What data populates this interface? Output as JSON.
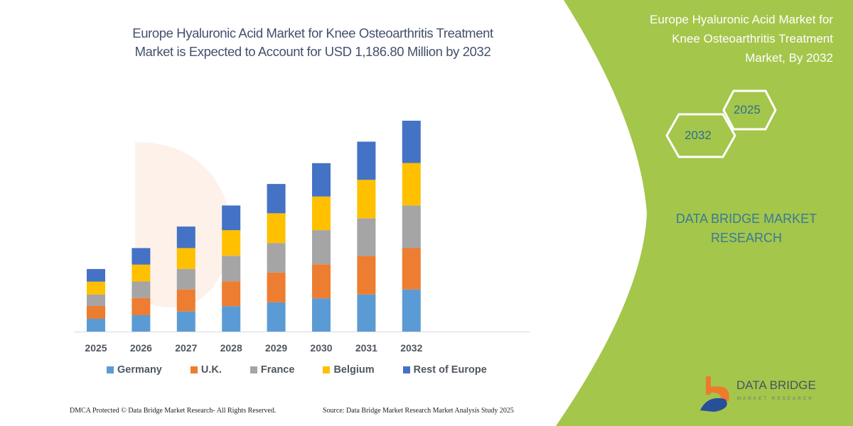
{
  "title": "Europe Hyaluronic Acid Market for Knee Osteoarthritis Treatment Market is Expected to Account for USD 1,186.80 Million by 2032",
  "title_lines": [
    "Europe Hyaluronic Acid Market for Knee Osteoarthritis Treatment",
    "Market is Expected to Account for USD 1,186.80 Million by 2032"
  ],
  "side_panel": {
    "title_lines": [
      "Europe Hyaluronic Acid Market for",
      "Knee Osteoarthritis Treatment",
      "Market, By 2032"
    ],
    "hex_years": [
      "2025",
      "2032"
    ],
    "brand_lines": [
      "DATA BRIDGE MARKET",
      "RESEARCH"
    ],
    "logo_name": "DATA BRIDGE",
    "logo_sub": "MARKET RESEARCH",
    "color": "#a4c64b"
  },
  "footer": {
    "copyright": "DMCA Protected © Data Bridge Market Research-  All Rights Reserved.",
    "source": "Source: Data Bridge Market Research  Market Analysis Study 2025"
  },
  "chart_data": {
    "type": "bar",
    "stacked": true,
    "categories": [
      "2025",
      "2026",
      "2027",
      "2028",
      "2029",
      "2030",
      "2031",
      "2032"
    ],
    "series": [
      {
        "name": "Germany",
        "color": "#5b9bd5",
        "values": [
          72,
          92,
          113,
          143,
          164,
          187,
          209,
          237
        ]
      },
      {
        "name": "U.K.",
        "color": "#ed7d31",
        "values": [
          72,
          97,
          124,
          140,
          168,
          192,
          217,
          233
        ]
      },
      {
        "name": "France",
        "color": "#a5a5a5",
        "values": [
          65,
          93,
          116,
          144,
          166,
          192,
          212,
          240
        ]
      },
      {
        "name": "Belgium",
        "color": "#ffc000",
        "values": [
          72,
          95,
          117,
          144,
          168,
          189,
          216,
          239
        ]
      },
      {
        "name": "Rest of Europe",
        "color": "#4472c4",
        "values": [
          71,
          93,
          121,
          139,
          165,
          188,
          215,
          238
        ]
      }
    ],
    "ylabel": "",
    "xlabel": "",
    "ylim": [
      0,
      1200
    ],
    "grid": false,
    "legend": "bottom"
  }
}
